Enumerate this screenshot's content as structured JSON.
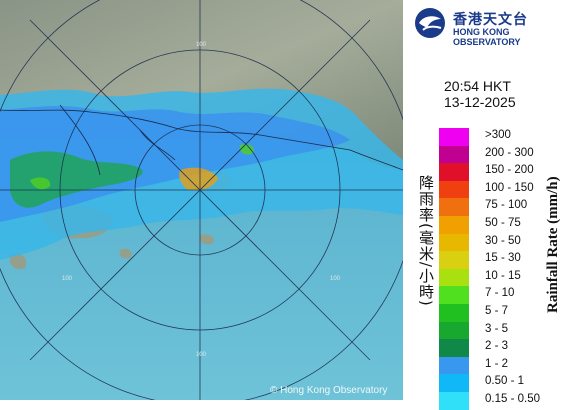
{
  "map": {
    "copyright": "© Hong Kong Observatory",
    "range_ring_labels": [
      "100",
      "100",
      "100",
      "100"
    ]
  },
  "panel": {
    "logo_cn": "香港天文台",
    "logo_en": "HONG KONG OBSERVATORY",
    "time": "20:54 HKT",
    "date": "13-12-2025",
    "axis_label_cn": "降雨率(毫米/小時)",
    "axis_label_en": "Rainfall Rate (mm/h)",
    "legend": [
      {
        "label": ">300",
        "color": "#f000f0"
      },
      {
        "label": "200 - 300",
        "color": "#c00090"
      },
      {
        "label": "150 - 200",
        "color": "#e0102a"
      },
      {
        "label": "100 - 150",
        "color": "#f04010"
      },
      {
        "label": "75 - 100",
        "color": "#f07010"
      },
      {
        "label": "50 - 75",
        "color": "#f0a000"
      },
      {
        "label": "30 - 50",
        "color": "#e8b800"
      },
      {
        "label": "15 - 30",
        "color": "#d8d010"
      },
      {
        "label": "10 - 15",
        "color": "#a8e010"
      },
      {
        "label": "7 - 10",
        "color": "#50e020"
      },
      {
        "label": "5 - 7",
        "color": "#20c020"
      },
      {
        "label": "3 - 5",
        "color": "#18a830"
      },
      {
        "label": "2 - 3",
        "color": "#108848"
      },
      {
        "label": "1 - 2",
        "color": "#3898f0"
      },
      {
        "label": "0.50 - 1",
        "color": "#10b8f8"
      },
      {
        "label": "0.15 - 0.50",
        "color": "#30e0f8"
      }
    ]
  }
}
